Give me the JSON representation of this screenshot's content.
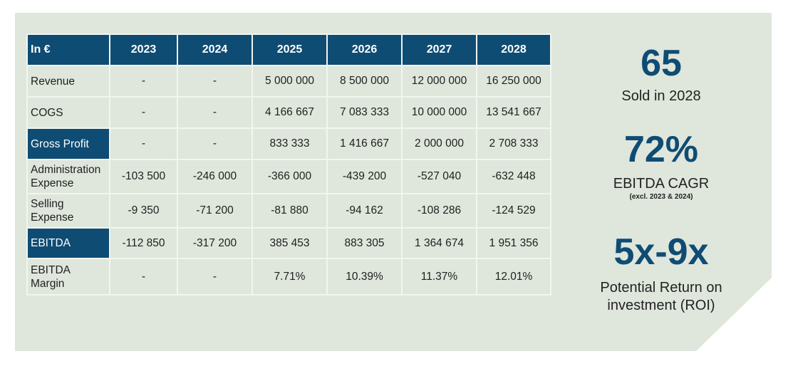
{
  "table": {
    "header": [
      "In €",
      "2023",
      "2024",
      "2025",
      "2026",
      "2027",
      "2028"
    ],
    "rows": [
      {
        "label": "Revenue",
        "values": [
          "-",
          "-",
          "5 000 000",
          "8 500 000",
          "12 000 000",
          "16 250 000"
        ]
      },
      {
        "label": "COGS",
        "values": [
          "-",
          "-",
          "4 166 667",
          "7 083 333",
          "10 000 000",
          "13 541 667"
        ]
      },
      {
        "label": "Gross Profit",
        "values": [
          "-",
          "-",
          "833 333",
          "1 416 667",
          "2 000 000",
          "2 708 333"
        ]
      },
      {
        "label": "Administration Expense",
        "values": [
          "-103 500",
          "-246 000",
          "-366 000",
          "-439 200",
          "-527 040",
          "-632 448"
        ]
      },
      {
        "label": "Selling Expense",
        "values": [
          "-9 350",
          "-71 200",
          "-81 880",
          "-94 162",
          "-108 286",
          "-124 529"
        ]
      },
      {
        "label": "EBITDA",
        "values": [
          "-112 850",
          "-317 200",
          "385 453",
          "883 305",
          "1 364 674",
          "1 951 356"
        ]
      },
      {
        "label": "EBITDA Margin",
        "values": [
          "-",
          "-",
          "7.71%",
          "10.39%",
          "11.37%",
          "12.01%"
        ]
      }
    ]
  },
  "stats": {
    "sold": {
      "value": "65",
      "caption": "Sold in 2028"
    },
    "cagr": {
      "value": "72%",
      "caption": "EBITDA CAGR",
      "note": "(excl. 2023 & 2024)"
    },
    "roi": {
      "value": "5x-9x",
      "caption": "Potential Return on investment (ROI)"
    }
  },
  "colors": {
    "accent": "#0f4c73",
    "panel": "#dfe6dc"
  }
}
